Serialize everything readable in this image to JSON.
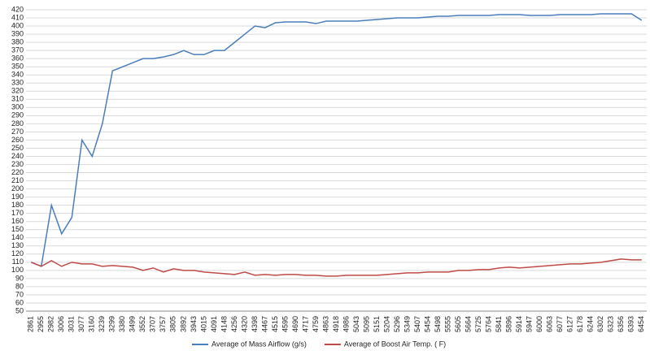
{
  "chart_data": {
    "type": "line",
    "categories": [
      "2861",
      "2955",
      "2982",
      "3006",
      "3031",
      "3077",
      "3160",
      "3239",
      "3299",
      "3380",
      "3499",
      "3552",
      "3707",
      "3757",
      "3805",
      "3892",
      "3943",
      "4015",
      "4091",
      "4148",
      "4256",
      "4320",
      "4398",
      "4467",
      "4515",
      "4595",
      "4690",
      "4717",
      "4759",
      "4863",
      "4918",
      "4986",
      "5043",
      "5095",
      "5151",
      "5204",
      "5296",
      "5349",
      "5407",
      "5454",
      "5498",
      "5555",
      "5605",
      "5664",
      "5725",
      "5764",
      "5841",
      "5896",
      "5914",
      "5947",
      "6000",
      "6063",
      "6077",
      "6127",
      "6178",
      "6244",
      "6302",
      "6323",
      "6356",
      "6393",
      "6454"
    ],
    "series": [
      {
        "name": "Average of Mass Airflow (g/s)",
        "color": "#4a7ebb",
        "values": [
          110,
          105,
          180,
          145,
          165,
          260,
          240,
          280,
          345,
          350,
          355,
          360,
          360,
          362,
          365,
          370,
          365,
          365,
          370,
          370,
          380,
          390,
          400,
          398,
          404,
          405,
          405,
          405,
          403,
          406,
          406,
          406,
          406,
          407,
          408,
          409,
          410,
          410,
          410,
          411,
          412,
          412,
          413,
          413,
          413,
          413,
          414,
          414,
          414,
          413,
          413,
          413,
          414,
          414,
          414,
          414,
          415,
          415,
          415,
          415,
          407
        ]
      },
      {
        "name": "Average of Boost Air Temp. ( F)",
        "color": "#be4b48",
        "values": [
          110,
          105,
          112,
          105,
          110,
          108,
          108,
          105,
          106,
          105,
          104,
          100,
          103,
          98,
          102,
          100,
          100,
          98,
          97,
          96,
          95,
          98,
          94,
          95,
          94,
          95,
          95,
          94,
          94,
          93,
          93,
          94,
          94,
          94,
          94,
          95,
          96,
          97,
          97,
          98,
          98,
          98,
          100,
          100,
          101,
          101,
          103,
          104,
          103,
          104,
          105,
          106,
          107,
          108,
          108,
          109,
          110,
          112,
          114,
          113,
          113
        ]
      }
    ],
    "ylim": [
      50,
      420
    ],
    "yticks": [
      50,
      60,
      70,
      80,
      90,
      100,
      110,
      120,
      130,
      140,
      150,
      160,
      170,
      180,
      190,
      200,
      210,
      220,
      230,
      240,
      250,
      260,
      270,
      280,
      290,
      300,
      310,
      320,
      330,
      340,
      350,
      360,
      370,
      380,
      390,
      400,
      410,
      420
    ],
    "grid": true
  }
}
